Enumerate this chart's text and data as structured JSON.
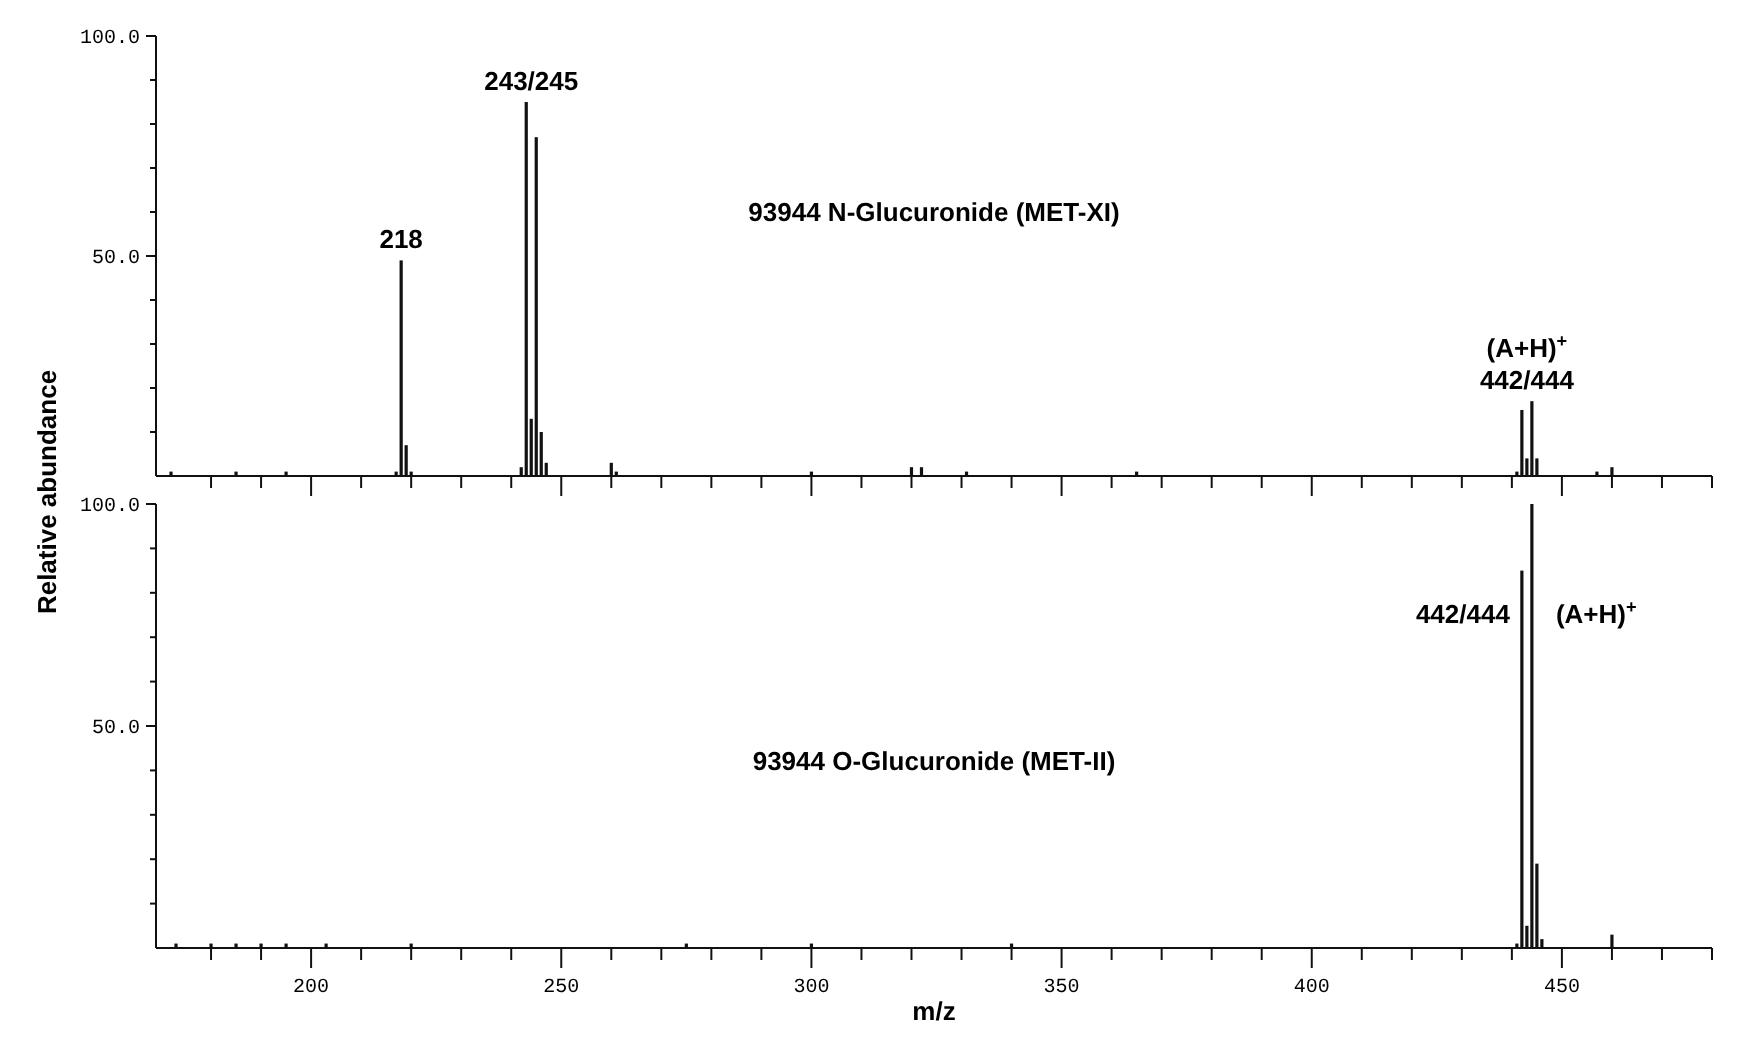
{
  "chart_data": [
    {
      "type": "bar",
      "ylabel": "Relative abundance",
      "color": "#111111",
      "tick_labels": "y",
      "x": [
        172,
        185,
        195,
        217,
        218,
        219,
        220,
        242,
        243,
        244,
        245,
        246,
        247,
        260,
        261,
        300,
        320,
        322,
        331,
        365,
        441,
        442,
        443,
        444,
        445,
        457,
        460
      ],
      "values": [
        1,
        1,
        1,
        1,
        49,
        7,
        1,
        2,
        85,
        13,
        77,
        10,
        3,
        3,
        1,
        1,
        2,
        2,
        1,
        1,
        1,
        15,
        4,
        17,
        4,
        1,
        2
      ],
      "xlim": [
        169,
        480
      ],
      "ylim": [
        0,
        100
      ],
      "xticks": [
        200,
        250,
        300,
        350,
        400,
        450,
        {
          "value": 180,
          "label": null
        },
        {
          "value": 190,
          "label": null
        },
        {
          "value": 210,
          "label": null
        },
        {
          "value": 220,
          "label": null
        },
        {
          "value": 230,
          "label": null
        },
        {
          "value": 240,
          "label": null
        },
        {
          "value": 260,
          "label": null
        },
        {
          "value": 270,
          "label": null
        },
        {
          "value": 280,
          "label": null
        },
        {
          "value": 290,
          "label": null
        },
        {
          "value": 310,
          "label": null
        },
        {
          "value": 320,
          "label": null
        },
        {
          "value": 330,
          "label": null
        },
        {
          "value": 340,
          "label": null
        },
        {
          "value": 360,
          "label": null
        },
        {
          "value": 370,
          "label": null
        },
        {
          "value": 380,
          "label": null
        },
        {
          "value": 390,
          "label": null
        },
        {
          "value": 410,
          "label": null
        },
        {
          "value": 420,
          "label": null
        },
        {
          "value": 430,
          "label": null
        },
        {
          "value": 440,
          "label": null
        },
        {
          "value": 460,
          "label": null
        },
        {
          "value": 470,
          "label": null
        },
        {
          "value": 480,
          "label": null
        }
      ],
      "yticks": [
        {
          "value": 50,
          "label": "50.0"
        },
        {
          "value": 100,
          "label": "100.0"
        },
        {
          "value": 10,
          "label": null
        },
        {
          "value": 20,
          "label": null
        },
        {
          "value": 30,
          "label": null
        },
        {
          "value": 40,
          "label": null
        },
        {
          "value": 60,
          "label": null
        },
        {
          "value": 70,
          "label": null
        },
        {
          "value": 80,
          "label": null
        },
        {
          "value": 90,
          "label": null
        }
      ],
      "annotations": [
        "93944 N-Glucuronide (MET-XI)",
        {
          "text": "218",
          "x": 218,
          "y": 49
        },
        {
          "text": "243/245",
          "x": 244,
          "y": 85
        },
        {
          "text": "442/444",
          "x": 443,
          "y": 17
        },
        {
          "text": "(A+H)$^{+}$",
          "x": 443,
          "y": 17
        }
      ]
    },
    {
      "type": "bar",
      "xlabel": "m/z",
      "color": "#111111",
      "x": [
        173,
        180,
        185,
        190,
        195,
        203,
        220,
        275,
        300,
        340,
        441,
        442,
        443,
        444,
        445,
        446,
        460
      ],
      "values": [
        1,
        1,
        1,
        1,
        1,
        1,
        1,
        1,
        1,
        1,
        1,
        85,
        5,
        100,
        19,
        2,
        3
      ],
      "xlim": [
        169,
        480
      ],
      "ylim": [
        0,
        100
      ],
      "xticks": [
        {
          "value": 200,
          "label": "200"
        },
        {
          "value": 250,
          "label": "250"
        },
        {
          "value": 300,
          "label": "300"
        },
        {
          "value": 350,
          "label": "350"
        },
        {
          "value": 400,
          "label": "400"
        },
        {
          "value": 450,
          "label": "450"
        },
        {
          "value": 180,
          "label": null
        },
        {
          "value": 190,
          "label": null
        },
        {
          "value": 210,
          "label": null
        },
        {
          "value": 220,
          "label": null
        },
        {
          "value": 230,
          "label": null
        },
        {
          "value": 240,
          "label": null
        },
        {
          "value": 260,
          "label": null
        },
        {
          "value": 270,
          "label": null
        },
        {
          "value": 280,
          "label": null
        },
        {
          "value": 290,
          "label": null
        },
        {
          "value": 310,
          "label": null
        },
        {
          "value": 320,
          "label": null
        },
        {
          "value": 330,
          "label": null
        },
        {
          "value": 340,
          "label": null
        },
        {
          "value": 360,
          "label": null
        },
        {
          "value": 370,
          "label": null
        },
        {
          "value": 380,
          "label": null
        },
        {
          "value": 390,
          "label": null
        },
        {
          "value": 410,
          "label": null
        },
        {
          "value": 420,
          "label": null
        },
        {
          "value": 430,
          "label": null
        },
        {
          "value": 440,
          "label": null
        },
        {
          "value": 460,
          "label": null
        },
        {
          "value": 470,
          "label": null
        },
        {
          "value": 480,
          "label": null
        }
      ],
      "yticks": [
        {
          "value": 50,
          "label": "50.0"
        },
        {
          "value": 100,
          "label": "100.0"
        },
        {
          "value": 10,
          "label": null
        },
        {
          "value": 20,
          "label": null
        },
        {
          "value": 30,
          "label": null
        },
        {
          "value": 40,
          "label": null
        },
        {
          "value": 60,
          "label": null
        },
        {
          "value": 70,
          "label": null
        },
        {
          "value": 80,
          "label": null
        },
        {
          "value": 90,
          "label": null
        }
      ],
      "annotations": [
        "93944 O-Glucuronide (MET-II)",
        {
          "text": "442/444",
          "x": 442,
          "y": 75
        },
        {
          "text": "(A+H)$^{+}$",
          "x": 444,
          "y": 75
        }
      ]
    }
  ]
}
